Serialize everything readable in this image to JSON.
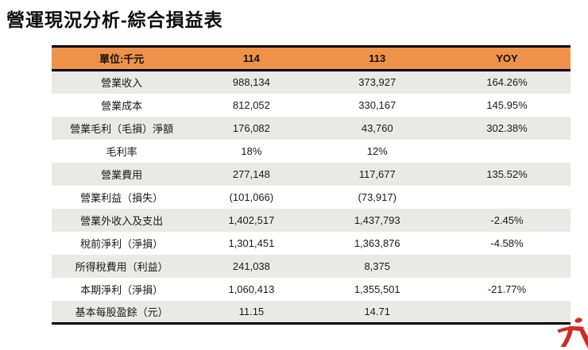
{
  "page": {
    "title": "營運現況分析-綜合損益表"
  },
  "table": {
    "columns": [
      "單位:千元",
      "114",
      "113",
      "YOY"
    ],
    "rows": [
      {
        "label": "營業收入",
        "v114": "988,134",
        "v113": "373,927",
        "yoy": "164.26%"
      },
      {
        "label": "營業成本",
        "v114": "812,052",
        "v113": "330,167",
        "yoy": "145.95%"
      },
      {
        "label": "營業毛利（毛損）淨額",
        "v114": "176,082",
        "v113": "43,760",
        "yoy": "302.38%"
      },
      {
        "label": "毛利率",
        "v114": "18%",
        "v113": "12%",
        "yoy": ""
      },
      {
        "label": "營業費用",
        "v114": "277,148",
        "v113": "117,677",
        "yoy": "135.52%"
      },
      {
        "label": "營業利益（損失）",
        "v114": "(101,066)",
        "v113": "(73,917)",
        "yoy": ""
      },
      {
        "label": "營業外收入及支出",
        "v114": "1,402,517",
        "v113": "1,437,793",
        "yoy": "-2.45%"
      },
      {
        "label": "稅前淨利（淨損）",
        "v114": "1,301,451",
        "v113": "1,363,876",
        "yoy": "-4.58%"
      },
      {
        "label": "所得稅費用（利益）",
        "v114": "241,038",
        "v113": "8,375",
        "yoy": ""
      },
      {
        "label": "本期淨利（淨損）",
        "v114": "1,060,413",
        "v113": "1,355,501",
        "yoy": "-21.77%"
      },
      {
        "label": "基本每股盈餘（元）",
        "v114": "11.15",
        "v113": "14.71",
        "yoy": ""
      }
    ]
  },
  "icons": {
    "brand_logo": "red-brush-stroke-company-logo"
  },
  "colors": {
    "header_bg": "#F0914A",
    "row_alt_bg": "#E9E9E7",
    "table_border": "#000000",
    "logo_red": "#D22A22",
    "title_text": "#0D0D0D"
  }
}
